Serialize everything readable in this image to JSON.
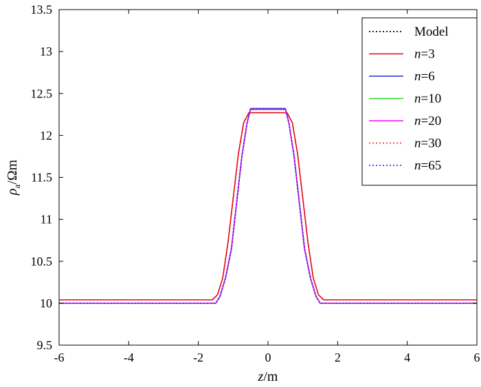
{
  "chart_data": {
    "type": "line",
    "xlabel": {
      "italic": "z",
      "rest": "/m"
    },
    "ylabel": {
      "symbol": "ρ",
      "subscript": "a",
      "rest": "/Ωm"
    },
    "xlim": [
      -6,
      6
    ],
    "ylim": [
      9.5,
      13.5
    ],
    "xticks": [
      -6,
      -4,
      -2,
      0,
      2,
      4,
      6
    ],
    "xtick_labels": [
      "-6",
      "-4",
      "-2",
      "0",
      "2",
      "4",
      "6"
    ],
    "yticks": [
      9.5,
      10,
      10.5,
      11,
      11.5,
      12,
      12.5,
      13,
      13.5
    ],
    "ytick_labels": [
      "9.5",
      "10",
      "10.5",
      "11",
      "11.5",
      "12",
      "12.5",
      "13",
      "13.5"
    ],
    "grid": false,
    "legend_position": "top-right",
    "series": [
      {
        "name": "Model",
        "legend_italic": "",
        "legend_rest": "Model",
        "color": "#000000",
        "style": "dotted",
        "x": [
          -6,
          -1.5,
          -1.38,
          -1.22,
          -1.05,
          -0.9,
          -0.75,
          -0.6,
          -0.5,
          0.5,
          0.6,
          0.75,
          0.9,
          1.05,
          1.22,
          1.38,
          1.5,
          6
        ],
        "y": [
          10.0,
          10.0,
          10.08,
          10.3,
          10.65,
          11.2,
          11.75,
          12.15,
          12.32,
          12.32,
          12.15,
          11.75,
          11.2,
          10.65,
          10.3,
          10.08,
          10.0,
          10.0
        ]
      },
      {
        "name": "n=3",
        "legend_italic": "n",
        "legend_rest": "=3",
        "color": "#e8000b",
        "style": "solid",
        "x": [
          -6,
          -1.6,
          -1.45,
          -1.3,
          -1.15,
          -1.0,
          -0.85,
          -0.7,
          -0.55,
          0.55,
          0.7,
          0.85,
          1.0,
          1.15,
          1.3,
          1.45,
          1.6,
          6
        ],
        "y": [
          10.04,
          10.04,
          10.1,
          10.3,
          10.72,
          11.25,
          11.78,
          12.15,
          12.27,
          12.27,
          12.15,
          11.78,
          11.25,
          10.72,
          10.3,
          10.1,
          10.04,
          10.04
        ]
      },
      {
        "name": "n=6",
        "legend_italic": "n",
        "legend_rest": "=6",
        "color": "#1f2bd8",
        "style": "solid",
        "x": [
          -6,
          -1.5,
          -1.38,
          -1.22,
          -1.05,
          -0.9,
          -0.75,
          -0.6,
          -0.5,
          0.5,
          0.6,
          0.75,
          0.9,
          1.05,
          1.22,
          1.38,
          1.5,
          6
        ],
        "y": [
          10.0,
          10.0,
          10.08,
          10.3,
          10.65,
          11.2,
          11.75,
          12.15,
          12.32,
          12.32,
          12.15,
          11.75,
          11.2,
          10.65,
          10.3,
          10.08,
          10.0,
          10.0
        ]
      },
      {
        "name": "n=10",
        "legend_italic": "n",
        "legend_rest": "=10",
        "color": "#22dd22",
        "style": "solid",
        "x": [
          -6,
          -1.5,
          -1.38,
          -1.22,
          -1.05,
          -0.9,
          -0.75,
          -0.6,
          -0.5,
          0.5,
          0.6,
          0.75,
          0.9,
          1.05,
          1.22,
          1.38,
          1.5,
          6
        ],
        "y": [
          10.0,
          10.0,
          10.08,
          10.3,
          10.65,
          11.2,
          11.75,
          12.15,
          12.31,
          12.31,
          12.15,
          11.75,
          11.2,
          10.65,
          10.3,
          10.08,
          10.0,
          10.0
        ]
      },
      {
        "name": "n=20",
        "legend_italic": "n",
        "legend_rest": "=20",
        "color": "#ff00ff",
        "style": "solid",
        "x": [
          -6,
          -1.5,
          -1.38,
          -1.22,
          -1.05,
          -0.9,
          -0.75,
          -0.6,
          -0.5,
          0.5,
          0.6,
          0.75,
          0.9,
          1.05,
          1.22,
          1.38,
          1.5,
          6
        ],
        "y": [
          10.0,
          10.0,
          10.08,
          10.3,
          10.65,
          11.2,
          11.75,
          12.15,
          12.31,
          12.31,
          12.15,
          11.75,
          11.2,
          10.65,
          10.3,
          10.08,
          10.0,
          10.0
        ]
      },
      {
        "name": "n=30",
        "legend_italic": "n",
        "legend_rest": "=30",
        "color": "#ff3030",
        "style": "dotted",
        "x": [
          -6,
          -1.5,
          -1.38,
          -1.22,
          -1.05,
          -0.9,
          -0.75,
          -0.6,
          -0.5,
          0.5,
          0.6,
          0.75,
          0.9,
          1.05,
          1.22,
          1.38,
          1.5,
          6
        ],
        "y": [
          10.0,
          10.0,
          10.08,
          10.3,
          10.65,
          11.2,
          11.75,
          12.15,
          12.32,
          12.32,
          12.15,
          11.75,
          11.2,
          10.65,
          10.3,
          10.08,
          10.0,
          10.0
        ]
      },
      {
        "name": "n=65",
        "legend_italic": "n",
        "legend_rest": "=65",
        "color": "#2a3cff",
        "style": "dotted",
        "x": [
          -6,
          -1.5,
          -1.38,
          -1.22,
          -1.05,
          -0.9,
          -0.75,
          -0.6,
          -0.5,
          0.5,
          0.6,
          0.75,
          0.9,
          1.05,
          1.22,
          1.38,
          1.5,
          6
        ],
        "y": [
          10.0,
          10.0,
          10.08,
          10.3,
          10.65,
          11.2,
          11.75,
          12.15,
          12.32,
          12.32,
          12.15,
          11.75,
          11.2,
          10.65,
          10.3,
          10.08,
          10.0,
          10.0
        ]
      }
    ]
  }
}
